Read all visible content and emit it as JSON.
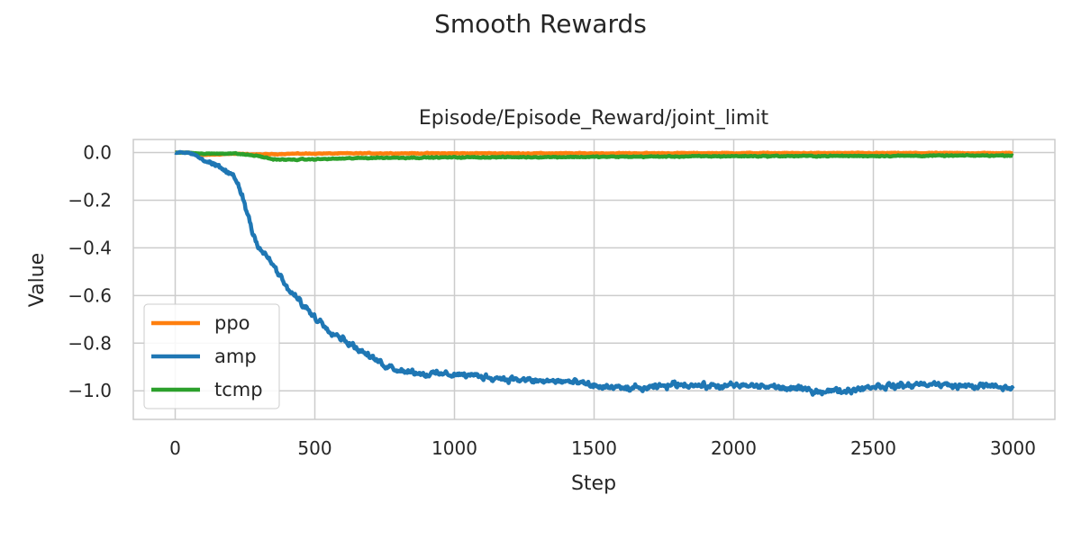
{
  "figure": {
    "suptitle": "Smooth Rewards"
  },
  "chart_data": {
    "type": "line",
    "title": "Episode/Episode_Reward/joint_limit",
    "xlabel": "Step",
    "ylabel": "Value",
    "xlim": [
      -150,
      3150
    ],
    "ylim": [
      -1.12,
      0.055
    ],
    "xticks": [
      0,
      500,
      1000,
      1500,
      2000,
      2500,
      3000
    ],
    "xtick_labels": [
      "0",
      "500",
      "1000",
      "1500",
      "2000",
      "2500",
      "3000"
    ],
    "yticks": [
      0.0,
      -0.2,
      -0.4,
      -0.6,
      -0.8,
      -1.0
    ],
    "ytick_labels": [
      "0.0",
      "−0.2",
      "−0.4",
      "−0.6",
      "−0.8",
      "−1.0"
    ],
    "grid": true,
    "legend_position": "lower-left",
    "series": [
      {
        "name": "ppo",
        "color": "#ff7f0e",
        "noise": 0.003,
        "x": [
          0,
          50,
          100,
          150,
          200,
          300,
          400,
          500,
          700,
          1000,
          1500,
          2000,
          2500,
          3000
        ],
        "y": [
          0.0,
          0.0,
          -0.01,
          -0.008,
          -0.005,
          -0.008,
          -0.005,
          -0.004,
          -0.003,
          -0.003,
          -0.003,
          -0.002,
          -0.002,
          -0.002
        ]
      },
      {
        "name": "amp",
        "color": "#1f77b4",
        "noise": 0.022,
        "x": [
          0,
          25,
          50,
          75,
          100,
          150,
          200,
          225,
          250,
          275,
          300,
          350,
          400,
          450,
          500,
          550,
          600,
          650,
          700,
          750,
          800,
          900,
          1000,
          1100,
          1200,
          1300,
          1400,
          1500,
          1600,
          1700,
          1800,
          1900,
          2000,
          2100,
          2200,
          2300,
          2400,
          2500,
          2600,
          2700,
          2800,
          2900,
          3000
        ],
        "y": [
          0.0,
          0.0,
          0.0,
          -0.01,
          -0.03,
          -0.06,
          -0.09,
          -0.13,
          -0.22,
          -0.32,
          -0.4,
          -0.47,
          -0.57,
          -0.63,
          -0.69,
          -0.74,
          -0.78,
          -0.82,
          -0.86,
          -0.89,
          -0.91,
          -0.93,
          -0.93,
          -0.94,
          -0.95,
          -0.96,
          -0.96,
          -0.98,
          -0.99,
          -0.99,
          -0.97,
          -0.98,
          -0.98,
          -0.98,
          -0.99,
          -1.0,
          -1.0,
          -0.98,
          -0.98,
          -0.97,
          -0.98,
          -0.98,
          -0.99
        ]
      },
      {
        "name": "tcmp",
        "color": "#2ca02c",
        "noise": 0.004,
        "x": [
          0,
          50,
          100,
          150,
          200,
          250,
          300,
          350,
          400,
          500,
          700,
          1000,
          1500,
          2000,
          2500,
          3000
        ],
        "y": [
          0.0,
          0.0,
          -0.005,
          -0.004,
          -0.003,
          -0.008,
          -0.015,
          -0.028,
          -0.03,
          -0.028,
          -0.022,
          -0.02,
          -0.018,
          -0.015,
          -0.014,
          -0.012
        ]
      }
    ]
  }
}
